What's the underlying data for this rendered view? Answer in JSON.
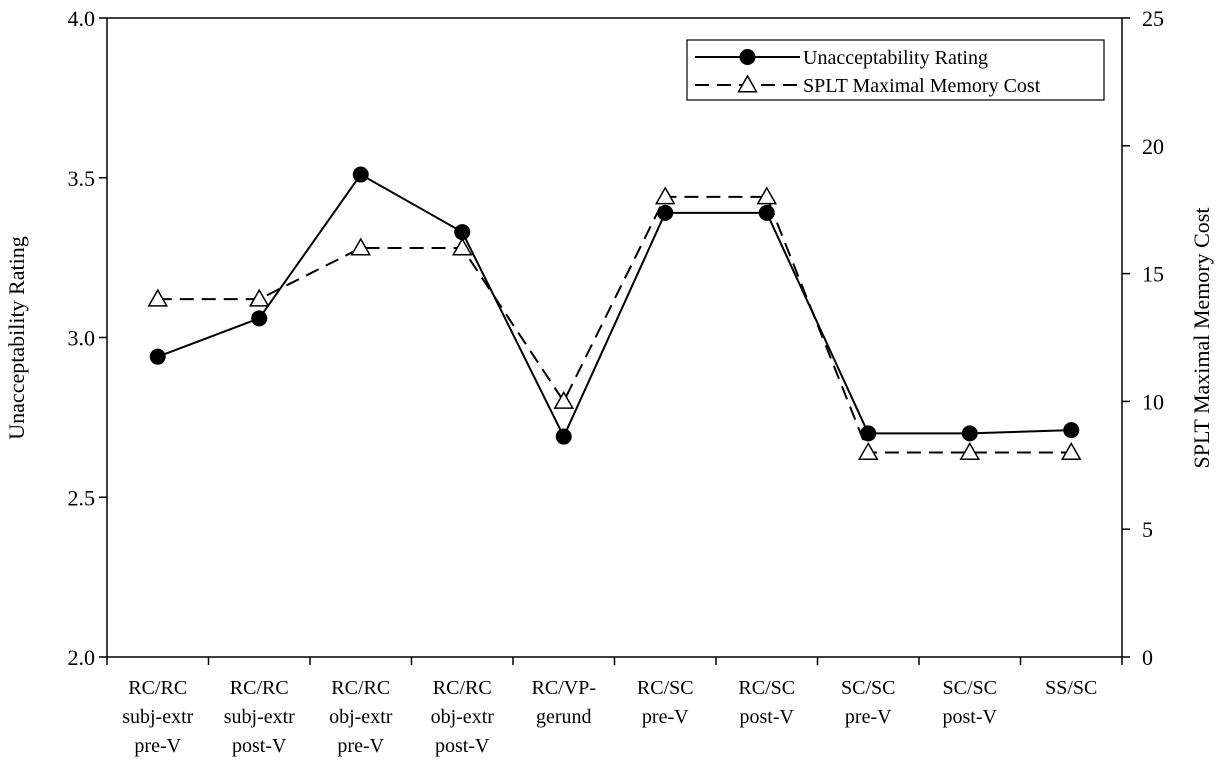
{
  "chart_data": {
    "type": "line",
    "categories": [
      [
        "RC/RC",
        "subj-extr",
        "pre-V"
      ],
      [
        "RC/RC",
        "subj-extr",
        "post-V"
      ],
      [
        "RC/RC",
        "obj-extr",
        "pre-V"
      ],
      [
        "RC/RC",
        "obj-extr",
        "post-V"
      ],
      [
        "RC/VP-",
        "gerund"
      ],
      [
        "RC/SC",
        "pre-V"
      ],
      [
        "RC/SC",
        "post-V"
      ],
      [
        "SC/SC",
        "pre-V"
      ],
      [
        "SC/SC",
        "post-V"
      ],
      [
        "SS/SC"
      ]
    ],
    "left_axis": {
      "label": "Unacceptability Rating",
      "ylim": [
        2.0,
        4.0
      ],
      "ticks": [
        "2.0",
        "2.5",
        "3.0",
        "3.5",
        "4.0"
      ]
    },
    "right_axis": {
      "label": "SPLT Maximal Memory Cost",
      "ylim": [
        0,
        25
      ],
      "ticks": [
        "0",
        "5",
        "10",
        "15",
        "20",
        "25"
      ]
    },
    "series": [
      {
        "name": "Unacceptability Rating",
        "axis": "left",
        "line_style": "solid",
        "marker": "filled-circle",
        "values": [
          2.94,
          3.06,
          3.51,
          3.33,
          2.69,
          3.39,
          3.39,
          2.7,
          2.7,
          2.71
        ]
      },
      {
        "name": "SPLT Maximal Memory Cost",
        "axis": "right",
        "line_style": "dashed",
        "marker": "open-triangle",
        "values": [
          14,
          14,
          16,
          16,
          10,
          18,
          18,
          8,
          8,
          8
        ]
      }
    ],
    "legend_position": "top-right",
    "grid": false
  }
}
